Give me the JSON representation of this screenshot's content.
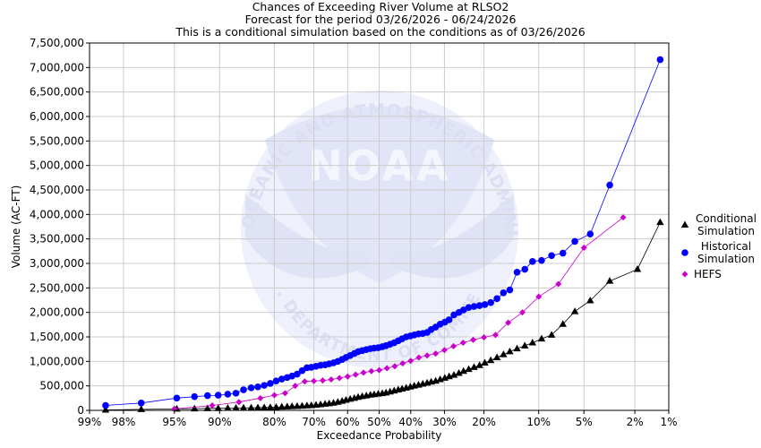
{
  "chart_data": {
    "type": "line",
    "title_lines": [
      "Chances of Exceeding River Volume at RLSO2",
      "Forecast for the period 03/26/2026 - 06/24/2026",
      "This is a conditional simulation based on the conditions as of 03/26/2026"
    ],
    "xlabel": "Exceedance Probability",
    "ylabel": "Volume (AC-FT)",
    "x_scale": "normal-probability",
    "x_ticks": [
      "99%",
      "98%",
      "95%",
      "90%",
      "80%",
      "70%",
      "60%",
      "50%",
      "40%",
      "30%",
      "20%",
      "10%",
      "5%",
      "2%",
      "1%"
    ],
    "y_ticks": [
      "0",
      "500,000",
      "1,000,000",
      "1,500,000",
      "2,000,000",
      "2,500,000",
      "3,000,000",
      "3,500,000",
      "4,000,000",
      "4,500,000",
      "5,000,000",
      "5,500,000",
      "6,000,000",
      "6,500,000",
      "7,000,000",
      "7,500,000"
    ],
    "ylim": [
      0,
      7500000
    ],
    "grid": true,
    "legend_position": "right",
    "watermark_text_top": "NATIONAL OCEANIC AND ATMOSPHERIC ADMINISTRATION",
    "watermark_text_bottom": "U.S. DEPARTMENT OF COMMERCE",
    "watermark_center": "NOAA",
    "series": [
      {
        "name": "Conditional Simulation",
        "legend_lines": [
          "Conditional",
          "Simulation"
        ],
        "color": "#000000",
        "marker": "triangle",
        "points": [
          [
            98.6,
            10000
          ],
          [
            97.2,
            20000
          ],
          [
            94.8,
            30000
          ],
          [
            93.1,
            35000
          ],
          [
            91.6,
            40000
          ],
          [
            90.2,
            42000
          ],
          [
            88.8,
            45000
          ],
          [
            87.5,
            48000
          ],
          [
            86.2,
            50000
          ],
          [
            84.8,
            52000
          ],
          [
            83.5,
            55000
          ],
          [
            82.2,
            58000
          ],
          [
            80.9,
            62000
          ],
          [
            79.6,
            65000
          ],
          [
            78.3,
            70000
          ],
          [
            77.0,
            75000
          ],
          [
            75.8,
            80000
          ],
          [
            74.5,
            85000
          ],
          [
            73.2,
            90000
          ],
          [
            71.9,
            95000
          ],
          [
            70.7,
            100000
          ],
          [
            69.4,
            110000
          ],
          [
            68.1,
            120000
          ],
          [
            66.8,
            130000
          ],
          [
            65.6,
            140000
          ],
          [
            64.3,
            150000
          ],
          [
            63.0,
            170000
          ],
          [
            61.7,
            190000
          ],
          [
            60.5,
            210000
          ],
          [
            59.2,
            230000
          ],
          [
            57.9,
            250000
          ],
          [
            56.7,
            270000
          ],
          [
            55.4,
            285000
          ],
          [
            54.1,
            300000
          ],
          [
            52.8,
            315000
          ],
          [
            51.6,
            325000
          ],
          [
            50.3,
            335000
          ],
          [
            49.0,
            345000
          ],
          [
            47.8,
            360000
          ],
          [
            46.5,
            380000
          ],
          [
            45.2,
            400000
          ],
          [
            43.9,
            420000
          ],
          [
            42.7,
            440000
          ],
          [
            41.4,
            460000
          ],
          [
            40.1,
            480000
          ],
          [
            38.9,
            500000
          ],
          [
            37.6,
            520000
          ],
          [
            36.3,
            540000
          ],
          [
            35.0,
            560000
          ],
          [
            33.8,
            580000
          ],
          [
            32.5,
            600000
          ],
          [
            31.2,
            630000
          ],
          [
            29.9,
            660000
          ],
          [
            28.7,
            690000
          ],
          [
            27.4,
            720000
          ],
          [
            26.1,
            760000
          ],
          [
            24.9,
            800000
          ],
          [
            23.6,
            840000
          ],
          [
            22.3,
            880000
          ],
          [
            21.0,
            920000
          ],
          [
            19.8,
            970000
          ],
          [
            18.5,
            1020000
          ],
          [
            17.2,
            1080000
          ],
          [
            15.9,
            1140000
          ],
          [
            14.7,
            1200000
          ],
          [
            13.4,
            1260000
          ],
          [
            12.1,
            1320000
          ],
          [
            10.9,
            1380000
          ],
          [
            9.6,
            1460000
          ],
          [
            8.3,
            1540000
          ],
          [
            7.0,
            1760000
          ],
          [
            5.8,
            2020000
          ],
          [
            4.5,
            2240000
          ],
          [
            3.2,
            2640000
          ],
          [
            1.9,
            2880000
          ],
          [
            1.2,
            3840000
          ]
        ]
      },
      {
        "name": "Historical Simulation",
        "legend_lines": [
          "Historical",
          "Simulation"
        ],
        "color": "#0000ff",
        "marker": "circle",
        "points": [
          [
            98.6,
            100000
          ],
          [
            97.2,
            150000
          ],
          [
            94.8,
            250000
          ],
          [
            93.1,
            280000
          ],
          [
            91.6,
            300000
          ],
          [
            90.2,
            310000
          ],
          [
            88.8,
            330000
          ],
          [
            87.5,
            350000
          ],
          [
            86.2,
            420000
          ],
          [
            84.8,
            460000
          ],
          [
            83.5,
            480000
          ],
          [
            82.2,
            510000
          ],
          [
            80.9,
            550000
          ],
          [
            79.6,
            600000
          ],
          [
            78.3,
            640000
          ],
          [
            77.0,
            670000
          ],
          [
            75.8,
            700000
          ],
          [
            74.5,
            740000
          ],
          [
            73.2,
            810000
          ],
          [
            71.9,
            870000
          ],
          [
            70.7,
            880000
          ],
          [
            69.4,
            900000
          ],
          [
            68.1,
            920000
          ],
          [
            66.8,
            930000
          ],
          [
            65.6,
            950000
          ],
          [
            64.3,
            970000
          ],
          [
            63.0,
            1000000
          ],
          [
            61.7,
            1040000
          ],
          [
            60.5,
            1080000
          ],
          [
            59.2,
            1120000
          ],
          [
            57.9,
            1160000
          ],
          [
            56.7,
            1200000
          ],
          [
            55.4,
            1220000
          ],
          [
            54.1,
            1240000
          ],
          [
            52.8,
            1260000
          ],
          [
            51.6,
            1270000
          ],
          [
            50.3,
            1280000
          ],
          [
            49.0,
            1300000
          ],
          [
            47.8,
            1320000
          ],
          [
            46.5,
            1350000
          ],
          [
            45.2,
            1380000
          ],
          [
            43.9,
            1420000
          ],
          [
            42.7,
            1460000
          ],
          [
            41.4,
            1500000
          ],
          [
            40.1,
            1520000
          ],
          [
            38.9,
            1540000
          ],
          [
            37.6,
            1560000
          ],
          [
            36.3,
            1570000
          ],
          [
            35.0,
            1590000
          ],
          [
            33.8,
            1650000
          ],
          [
            32.5,
            1700000
          ],
          [
            31.2,
            1760000
          ],
          [
            29.9,
            1800000
          ],
          [
            28.7,
            1850000
          ],
          [
            27.4,
            1950000
          ],
          [
            26.1,
            2000000
          ],
          [
            24.9,
            2050000
          ],
          [
            23.6,
            2100000
          ],
          [
            22.3,
            2120000
          ],
          [
            21.0,
            2140000
          ],
          [
            19.8,
            2160000
          ],
          [
            18.5,
            2200000
          ],
          [
            17.2,
            2280000
          ],
          [
            15.9,
            2400000
          ],
          [
            14.7,
            2460000
          ],
          [
            13.4,
            2820000
          ],
          [
            12.1,
            2880000
          ],
          [
            10.9,
            3040000
          ],
          [
            9.6,
            3060000
          ],
          [
            8.3,
            3160000
          ],
          [
            7.0,
            3210000
          ],
          [
            5.8,
            3450000
          ],
          [
            4.5,
            3600000
          ],
          [
            3.2,
            4600000
          ],
          [
            1.2,
            7160000
          ]
        ]
      },
      {
        "name": "HEFS",
        "legend_lines": [
          "HEFS"
        ],
        "color": "#cc00cc",
        "marker": "diamond",
        "points": [
          [
            95.0,
            30000
          ],
          [
            91.0,
            100000
          ],
          [
            87.0,
            170000
          ],
          [
            83.0,
            250000
          ],
          [
            80.0,
            310000
          ],
          [
            77.5,
            350000
          ],
          [
            75.0,
            500000
          ],
          [
            72.5,
            590000
          ],
          [
            70.0,
            600000
          ],
          [
            67.5,
            610000
          ],
          [
            65.0,
            630000
          ],
          [
            62.5,
            660000
          ],
          [
            60.0,
            690000
          ],
          [
            57.5,
            730000
          ],
          [
            55.0,
            770000
          ],
          [
            52.5,
            800000
          ],
          [
            50.0,
            820000
          ],
          [
            47.5,
            860000
          ],
          [
            45.0,
            900000
          ],
          [
            42.5,
            960000
          ],
          [
            40.0,
            1010000
          ],
          [
            37.5,
            1080000
          ],
          [
            35.0,
            1120000
          ],
          [
            32.5,
            1160000
          ],
          [
            30.0,
            1230000
          ],
          [
            27.5,
            1310000
          ],
          [
            25.0,
            1380000
          ],
          [
            22.5,
            1440000
          ],
          [
            20.0,
            1490000
          ],
          [
            17.5,
            1540000
          ],
          [
            15.0,
            1790000
          ],
          [
            12.5,
            2000000
          ],
          [
            10.0,
            2320000
          ],
          [
            7.5,
            2580000
          ],
          [
            5.0,
            3320000
          ],
          [
            2.5,
            3940000
          ]
        ]
      }
    ]
  }
}
